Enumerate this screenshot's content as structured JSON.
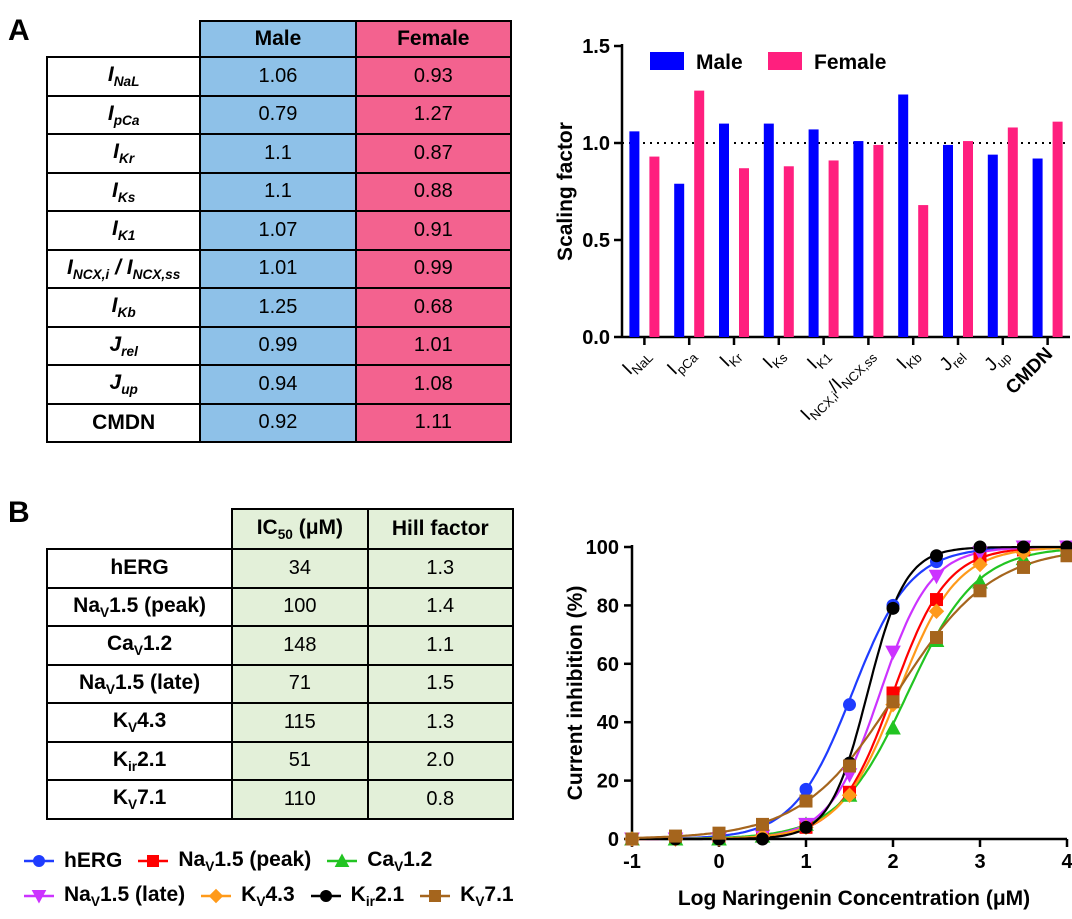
{
  "panelA": {
    "letter": "A",
    "table": {
      "headers": [
        "Male",
        "Female"
      ],
      "rows": [
        {
          "base": "I",
          "sub": "NaL",
          "male": "1.06",
          "female": "0.93"
        },
        {
          "base": "I",
          "sub": "pCa",
          "male": "0.79",
          "female": "1.27"
        },
        {
          "base": "I",
          "sub": "Kr",
          "male": "1.1",
          "female": "0.87"
        },
        {
          "base": "I",
          "sub": "Ks",
          "male": "1.1",
          "female": "0.88"
        },
        {
          "base": "I",
          "sub": "K1",
          "male": "1.07",
          "female": "0.91"
        },
        {
          "base": "I",
          "sub": "NCX,i",
          "base2": "I",
          "sub2": "NCX,ss",
          "male": "1.01",
          "female": "0.99"
        },
        {
          "base": "I",
          "sub": "Kb",
          "male": "1.25",
          "female": "0.68"
        },
        {
          "base": "J",
          "sub": "rel",
          "male": "0.99",
          "female": "1.01"
        },
        {
          "base": "J",
          "sub": "up",
          "male": "0.94",
          "female": "1.08"
        },
        {
          "base": "CMDN",
          "sub": "",
          "male": "0.92",
          "female": "1.11"
        }
      ]
    }
  },
  "panelB": {
    "letter": "B",
    "table": {
      "headers": {
        "ic50_base": "IC",
        "ic50_sub": "50",
        "ic50_unit": " (μM)",
        "hill": "Hill factor"
      },
      "rows": [
        {
          "name": "hERG",
          "ic50": "34",
          "hill": "1.3"
        },
        {
          "name": "Na",
          "nsub": "V",
          "nrest": "1.5 (peak)",
          "ic50": "100",
          "hill": "1.4"
        },
        {
          "name": "Ca",
          "nsub": "V",
          "nrest": "1.2",
          "ic50": "148",
          "hill": "1.1"
        },
        {
          "name": "Na",
          "nsub": "V",
          "nrest": "1.5 (late)",
          "ic50": "71",
          "hill": "1.5"
        },
        {
          "name": "K",
          "nsub": "V",
          "nrest": "4.3",
          "ic50": "115",
          "hill": "1.3"
        },
        {
          "name": "K",
          "nsub": "ir",
          "nrest": "2.1",
          "ic50": "51",
          "hill": "2.0"
        },
        {
          "name": "K",
          "nsub": "V",
          "nrest": "7.1",
          "ic50": "110",
          "hill": "0.8"
        }
      ]
    },
    "legend_rows": [
      [
        {
          "series": 0,
          "base": "hERG",
          "sub": "",
          "rest": ""
        },
        {
          "series": 1,
          "base": "Na",
          "sub": "V",
          "rest": "1.5 (peak)"
        },
        {
          "series": 2,
          "base": "Ca",
          "sub": "V",
          "rest": "1.2"
        }
      ],
      [
        {
          "series": 3,
          "base": "Na",
          "sub": "V",
          "rest": "1.5 (late)"
        },
        {
          "series": 4,
          "base": "K",
          "sub": "V",
          "rest": "4.3"
        },
        {
          "series": 5,
          "base": "K",
          "sub": "ir",
          "rest": "2.1"
        },
        {
          "series": 6,
          "base": "K",
          "sub": "V",
          "rest": "7.1"
        }
      ]
    ]
  },
  "chart_data": [
    {
      "type": "bar",
      "ylabel": "Scaling factor",
      "xlabel": "",
      "ylim": [
        0,
        1.5
      ],
      "yticks": [
        "0.0",
        "0.5",
        "1.0",
        "1.5"
      ],
      "reference_line": 1.0,
      "legend_position": "top-left",
      "categories": [
        {
          "base": "I",
          "sub": "NaL"
        },
        {
          "base": "I",
          "sub": "pCa"
        },
        {
          "base": "I",
          "sub": "Kr"
        },
        {
          "base": "I",
          "sub": "Ks"
        },
        {
          "base": "I",
          "sub": "K1"
        },
        {
          "base": "I",
          "sub": "NCX,i",
          "base2": "/I",
          "sub2": "NCX,ss"
        },
        {
          "base": "I",
          "sub": "Kb"
        },
        {
          "base": "J",
          "sub": "rel"
        },
        {
          "base": "J",
          "sub": "up"
        },
        {
          "base": "CMDN",
          "sub": ""
        }
      ],
      "series": [
        {
          "name": "Male",
          "color": "#0000ff",
          "values": [
            1.06,
            0.79,
            1.1,
            1.1,
            1.07,
            1.01,
            1.25,
            0.99,
            0.94,
            0.92
          ]
        },
        {
          "name": "Female",
          "color": "#ff1f7e",
          "values": [
            0.93,
            1.27,
            0.87,
            0.88,
            0.91,
            0.99,
            0.68,
            1.01,
            1.08,
            1.11
          ]
        }
      ]
    },
    {
      "type": "scatter",
      "xlabel": "Log Naringenin Concentration (μM)",
      "ylabel": "Current inhibition (%)",
      "xlim": [
        -1,
        4
      ],
      "ylim": [
        0,
        100
      ],
      "xticks": [
        "-1",
        "0",
        "1",
        "2",
        "3",
        "4"
      ],
      "yticks": [
        "0",
        "20",
        "40",
        "60",
        "80",
        "100"
      ],
      "x": [
        -1,
        -0.5,
        0,
        0.5,
        1,
        1.5,
        2,
        2.5,
        3,
        3.5,
        4
      ],
      "series": [
        {
          "color": "#1f3cff",
          "marker": "circle",
          "ic50": 34,
          "hill": 1.3,
          "values": [
            0,
            0,
            1,
            4,
            17,
            46,
            80,
            95,
            99,
            100,
            100
          ]
        },
        {
          "color": "#ff0000",
          "marker": "square",
          "ic50": 100,
          "hill": 1.4,
          "values": [
            0,
            0,
            0,
            1,
            4,
            16,
            50,
            82,
            96,
            99,
            100
          ]
        },
        {
          "color": "#22c422",
          "marker": "triangle-up",
          "ic50": 148,
          "hill": 1.1,
          "values": [
            0,
            0,
            0,
            1,
            5,
            15,
            38,
            68,
            88,
            96,
            99
          ]
        },
        {
          "color": "#cc33ff",
          "marker": "triangle-down",
          "ic50": 71,
          "hill": 1.5,
          "values": [
            0,
            0,
            0,
            1,
            5,
            22,
            64,
            90,
            98,
            100,
            100
          ]
        },
        {
          "color": "#ff9a1a",
          "marker": "diamond",
          "ic50": 115,
          "hill": 1.3,
          "values": [
            0,
            0,
            0,
            1,
            4,
            15,
            46,
            78,
            94,
            98,
            99
          ]
        },
        {
          "color": "#000000",
          "marker": "circle",
          "ic50": 51,
          "hill": 2.0,
          "values": [
            0,
            0,
            0,
            0,
            4,
            26,
            79,
            97,
            100,
            100,
            100
          ]
        },
        {
          "color": "#a5651d",
          "marker": "square",
          "ic50": 110,
          "hill": 0.8,
          "values": [
            0,
            1,
            2,
            5,
            13,
            25,
            47,
            69,
            85,
            93,
            97
          ]
        }
      ]
    }
  ]
}
